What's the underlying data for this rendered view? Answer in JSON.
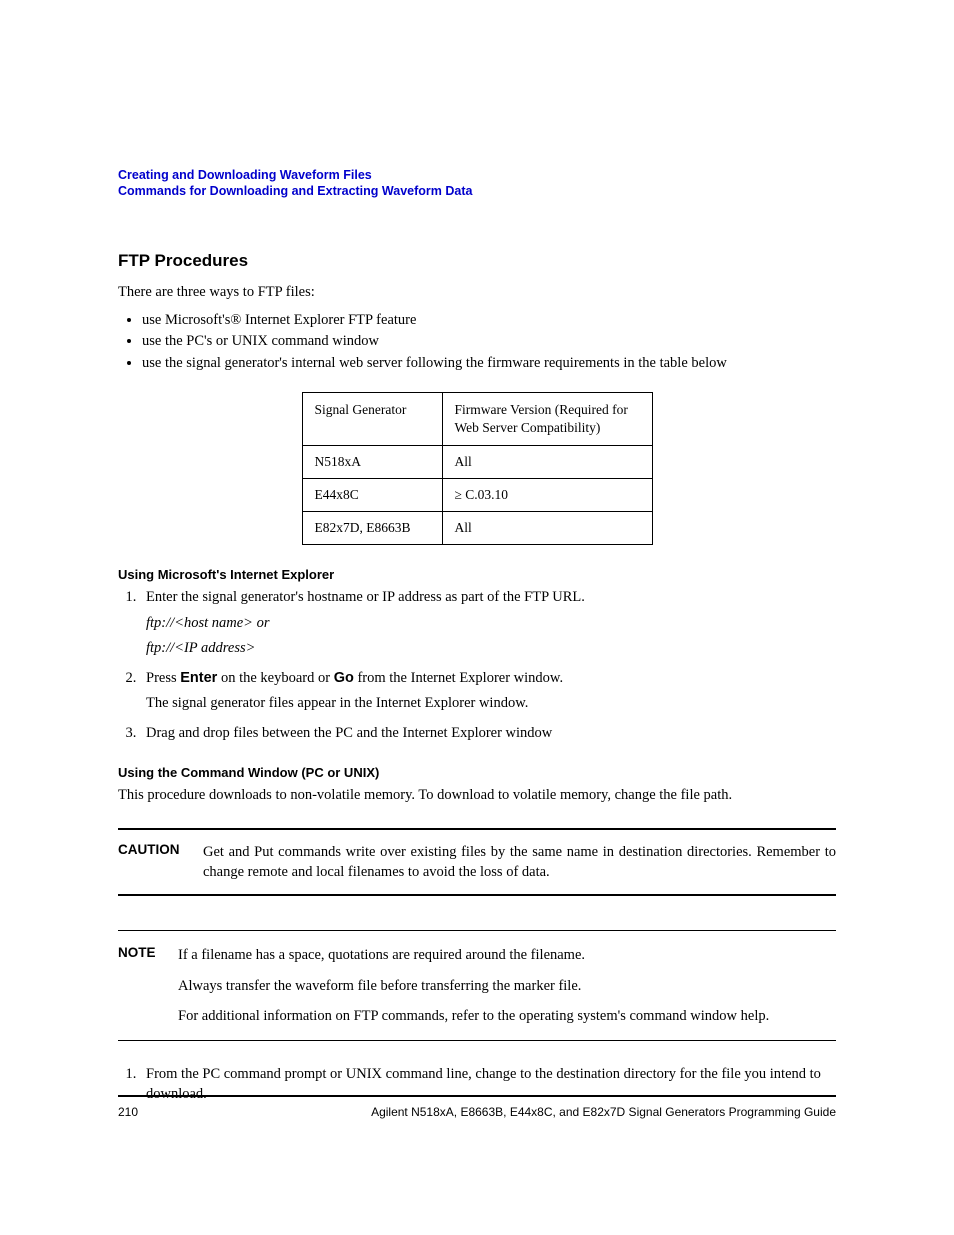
{
  "header": {
    "line1": "Creating and Downloading Waveform Files",
    "line2": "Commands for Downloading and Extracting Waveform Data",
    "link_color": "#0000cc"
  },
  "section": {
    "heading": "FTP Procedures",
    "intro": "There are three ways to FTP files:",
    "bullets": [
      "use Microsoft's® Internet Explorer FTP feature",
      "use the PC's or UNIX command window",
      "use the signal generator's internal web server following the firmware requirements in the table below"
    ]
  },
  "table": {
    "headers": [
      "Signal Generator",
      "Firmware Version (Required for Web Server Compatibility)"
    ],
    "rows": [
      [
        "N518xA",
        "All"
      ],
      [
        "E44x8C",
        "≥ C.03.10"
      ],
      [
        "E82x7D, E8663B",
        "All"
      ]
    ]
  },
  "ie_section": {
    "heading": "Using Microsoft's Internet Explorer",
    "step1_text": "Enter the signal generator's hostname or IP address as part of the FTP URL.",
    "step1_sub1": "ftp://<host name> or",
    "step1_sub2": "ftp://<IP address>",
    "step2_pre": "Press ",
    "step2_b1": "Enter",
    "step2_mid": " on the keyboard or ",
    "step2_b2": "Go",
    "step2_post": " from the Internet Explorer window.",
    "step2_sub": "The signal generator files appear in the Internet Explorer window.",
    "step3": "Drag and drop files between the PC and the Internet Explorer window"
  },
  "cmd_section": {
    "heading": "Using the Command Window (PC or UNIX)",
    "intro": "This procedure downloads to non-volatile memory. To download to volatile memory, change the file path."
  },
  "caution": {
    "label": "CAUTION",
    "text": "Get and Put commands write over existing files by the same name in destination directories. Remember to change remote and local filenames to avoid the loss of data."
  },
  "note": {
    "label": "NOTE",
    "p1": "If a filename has a space, quotations are required around the filename.",
    "p2": "Always transfer the waveform file before transferring the marker file.",
    "p3": "For additional information on FTP commands, refer to the operating system's command window help."
  },
  "cmd_steps": {
    "step1": "From the PC command prompt or UNIX command line, change to the destination directory for the file you intend to download."
  },
  "footer": {
    "page_number": "210",
    "title": "Agilent N518xA, E8663B, E44x8C, and E82x7D Signal Generators Programming Guide"
  },
  "colors": {
    "text": "#000000",
    "background": "#ffffff",
    "link": "#0000cc",
    "border": "#000000"
  },
  "typography": {
    "body_font": "Century Schoolbook",
    "heading_font": "Arial",
    "body_size_pt": 11,
    "heading_size_pt": 13,
    "subheading_size_pt": 10,
    "footer_size_pt": 9
  }
}
